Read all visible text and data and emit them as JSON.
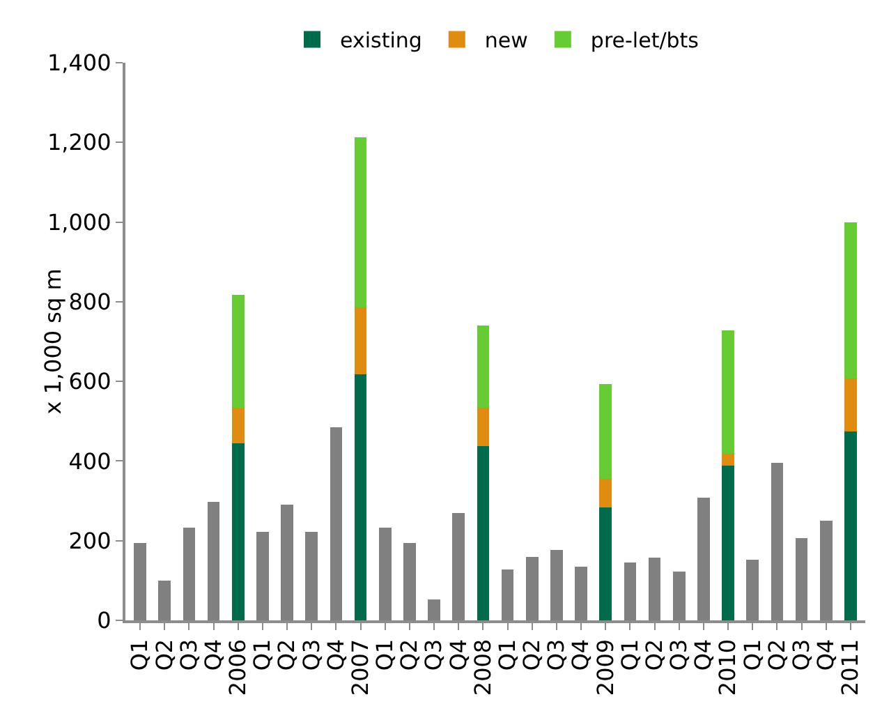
{
  "chart_data": {
    "type": "bar",
    "stacked": true,
    "ylabel": "x 1,000 sq m",
    "categories": [
      "Q1",
      "Q2",
      "Q3",
      "Q4",
      "2006",
      "Q1",
      "Q2",
      "Q3",
      "Q4",
      "2007",
      "Q1",
      "Q2",
      "Q3",
      "Q4",
      "2008",
      "Q1",
      "Q2",
      "Q3",
      "Q4",
      "2009",
      "Q1",
      "Q2",
      "Q3",
      "Q4",
      "2010",
      "Q1",
      "Q2",
      "Q3",
      "Q4",
      "2011"
    ],
    "series": [
      {
        "name": "existing",
        "color": "#006b4a",
        "values": [
          null,
          null,
          null,
          null,
          445,
          null,
          null,
          null,
          null,
          618,
          null,
          null,
          null,
          null,
          438,
          null,
          null,
          null,
          null,
          283,
          null,
          null,
          null,
          null,
          388,
          null,
          null,
          null,
          null,
          475
        ]
      },
      {
        "name": "new",
        "color": "#e08c10",
        "values": [
          null,
          null,
          null,
          null,
          88,
          null,
          null,
          null,
          null,
          167,
          null,
          null,
          null,
          null,
          95,
          null,
          null,
          null,
          null,
          72,
          null,
          null,
          null,
          null,
          30,
          null,
          null,
          null,
          null,
          133
        ]
      },
      {
        "name": "pre-let/bts",
        "color": "#66cc33",
        "values": [
          null,
          null,
          null,
          null,
          285,
          null,
          null,
          null,
          null,
          428,
          null,
          null,
          null,
          null,
          207,
          null,
          null,
          null,
          null,
          238,
          null,
          null,
          null,
          null,
          310,
          null,
          null,
          null,
          null,
          392
        ]
      },
      {
        "color": "#808080",
        "values": [
          195,
          100,
          232,
          298,
          null,
          222,
          290,
          222,
          485,
          null,
          232,
          195,
          52,
          270,
          null,
          128,
          160,
          177,
          135,
          null,
          145,
          157,
          122,
          308,
          null,
          152,
          395,
          207,
          250,
          null
        ]
      }
    ],
    "ylim": [
      0,
      1400
    ],
    "yticks": [
      {
        "value": 0,
        "label": "0"
      },
      {
        "value": 200,
        "label": "200"
      },
      {
        "value": 400,
        "label": "400"
      },
      {
        "value": 600,
        "label": "600"
      },
      {
        "value": 800,
        "label": "800"
      },
      {
        "value": 1000,
        "label": "1,000"
      },
      {
        "value": 1200,
        "label": "1,200"
      },
      {
        "value": 1400,
        "label": "1,400"
      }
    ],
    "grid": false,
    "legend": "top"
  }
}
